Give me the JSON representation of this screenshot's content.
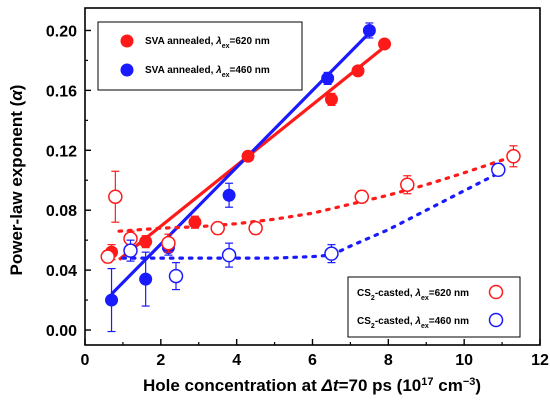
{
  "chart_data": {
    "type": "scatter",
    "xlabel": "Hole concentration at Δt=70 ps (10¹⁷ cm⁻³)",
    "ylabel": "Power-law exponent (α)",
    "xlim": [
      0,
      12
    ],
    "ylim": [
      -0.01,
      0.215
    ],
    "x_ticks": [
      "0",
      "2",
      "4",
      "6",
      "8",
      "10",
      "12"
    ],
    "y_ticks": [
      "0.00",
      "0.04",
      "0.08",
      "0.12",
      "0.16",
      "0.20"
    ],
    "x_tick_values": [
      0,
      2,
      4,
      6,
      8,
      10,
      12
    ],
    "y_tick_values": [
      0.0,
      0.04,
      0.08,
      0.12,
      0.16,
      0.2
    ],
    "legend_top": [
      {
        "name": "SVA annealed, λex=620 nm",
        "color": "#ff1a1a",
        "marker": "filled-circle"
      },
      {
        "name": "SVA annealed, λex=460 nm",
        "color": "#1a1aff",
        "marker": "filled-circle"
      }
    ],
    "legend_bottom": [
      {
        "name": "CS2-casted, λex=620 nm",
        "color": "#ff1a1a",
        "marker": "open-circle"
      },
      {
        "name": "CS2-casted, λex=460 nm",
        "color": "#1a1aff",
        "marker": "open-circle"
      }
    ],
    "series": [
      {
        "color": "#ff1a1a",
        "marker": "filled",
        "points": [
          {
            "x": 0.7,
            "y": 0.052,
            "err": 0.005
          },
          {
            "x": 1.6,
            "y": 0.059,
            "err": 0.004
          },
          {
            "x": 2.9,
            "y": 0.072,
            "err": 0.004
          },
          {
            "x": 4.3,
            "y": 0.116,
            "err": 0.003
          },
          {
            "x": 6.5,
            "y": 0.154,
            "err": 0.004
          },
          {
            "x": 7.2,
            "y": 0.173,
            "err": 0.003
          },
          {
            "x": 7.9,
            "y": 0.191,
            "err": 0.003
          }
        ],
        "fit": {
          "style": "solid",
          "x": [
            0.9,
            8.0
          ],
          "y": [
            0.047,
            0.191
          ]
        }
      },
      {
        "color": "#1a1aff",
        "marker": "filled",
        "points": [
          {
            "x": 0.7,
            "y": 0.02,
            "err": 0.021
          },
          {
            "x": 1.6,
            "y": 0.034,
            "err": 0.018
          },
          {
            "x": 2.2,
            "y": 0.055,
            "err": 0.005
          },
          {
            "x": 3.8,
            "y": 0.09,
            "err": 0.008
          },
          {
            "x": 6.4,
            "y": 0.168,
            "err": 0.004
          },
          {
            "x": 7.5,
            "y": 0.2,
            "err": 0.005
          }
        ],
        "fit": {
          "style": "solid",
          "x": [
            0.7,
            7.6
          ],
          "y": [
            0.024,
            0.201
          ]
        }
      },
      {
        "color": "#ff1a1a",
        "marker": "open",
        "points": [
          {
            "x": 0.6,
            "y": 0.049,
            "err": 0.004
          },
          {
            "x": 0.8,
            "y": 0.089,
            "err": 0.017
          },
          {
            "x": 1.2,
            "y": 0.061,
            "err": 0.005
          },
          {
            "x": 2.2,
            "y": 0.058,
            "err": 0.006
          },
          {
            "x": 3.5,
            "y": 0.068,
            "err": 0.004
          },
          {
            "x": 4.5,
            "y": 0.068,
            "err": 0.004
          },
          {
            "x": 7.3,
            "y": 0.089,
            "err": 0.004
          },
          {
            "x": 8.5,
            "y": 0.097,
            "err": 0.006
          },
          {
            "x": 11.3,
            "y": 0.116,
            "err": 0.007
          }
        ],
        "fit": {
          "style": "dotted",
          "x": [
            0.9,
            2.0,
            3.0,
            4.0,
            5.0,
            6.0,
            7.0,
            8.0,
            9.0,
            10.0,
            11.3
          ],
          "y": [
            0.066,
            0.068,
            0.069,
            0.071,
            0.074,
            0.078,
            0.084,
            0.09,
            0.097,
            0.105,
            0.116
          ]
        }
      },
      {
        "color": "#1a1aff",
        "marker": "open",
        "points": [
          {
            "x": 1.2,
            "y": 0.053,
            "err": 0.007
          },
          {
            "x": 2.4,
            "y": 0.036,
            "err": 0.009
          },
          {
            "x": 3.8,
            "y": 0.05,
            "err": 0.008
          },
          {
            "x": 6.5,
            "y": 0.051,
            "err": 0.006
          },
          {
            "x": 10.9,
            "y": 0.107,
            "err": 0.004
          }
        ],
        "fit": {
          "style": "dotted",
          "x": [
            1.0,
            2.0,
            3.0,
            4.0,
            5.0,
            6.0,
            6.5,
            7.0,
            8.0,
            9.0,
            10.0,
            11.0
          ],
          "y": [
            0.048,
            0.048,
            0.048,
            0.048,
            0.048,
            0.049,
            0.05,
            0.056,
            0.067,
            0.08,
            0.093,
            0.106
          ]
        }
      }
    ]
  }
}
